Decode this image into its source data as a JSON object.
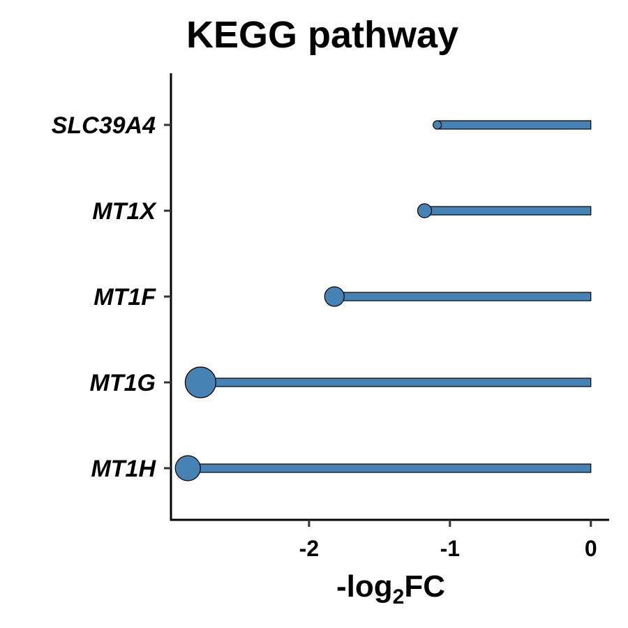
{
  "chart_data": {
    "type": "lollipop",
    "title": "KEGG pathway",
    "xlabel_main": "-log",
    "xlabel_sub": "2",
    "xlabel_end": "FC",
    "ylabel": "",
    "xlim": [
      -2.98,
      0.13
    ],
    "x_ticks": [
      {
        "value": -2,
        "label": "-2"
      },
      {
        "value": -1,
        "label": "-1"
      },
      {
        "value": 0,
        "label": "0"
      }
    ],
    "categories": [
      "SLC39A4",
      "MT1X",
      "MT1F",
      "MT1G",
      "MT1H"
    ],
    "values": [
      -1.09,
      -1.18,
      -1.82,
      -2.77,
      -2.86
    ],
    "size_values": [
      1,
      2,
      3,
      5,
      4
    ],
    "grid": false,
    "legend": "none",
    "colors": {
      "bar_fill": "#4682B4",
      "stroke": "#000000",
      "axis": "#000000"
    }
  }
}
